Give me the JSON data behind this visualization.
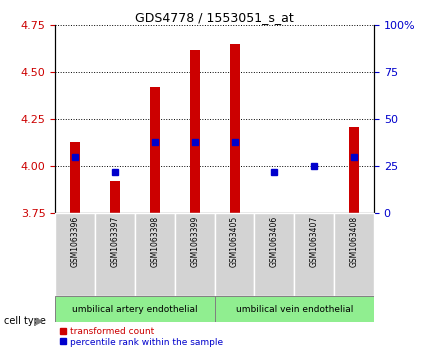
{
  "title": "GDS4778 / 1553051_s_at",
  "samples": [
    "GSM1063396",
    "GSM1063397",
    "GSM1063398",
    "GSM1063399",
    "GSM1063405",
    "GSM1063406",
    "GSM1063407",
    "GSM1063408"
  ],
  "transformed_counts": [
    4.13,
    3.92,
    4.42,
    4.62,
    4.65,
    3.75,
    3.75,
    4.21
  ],
  "percentile_ranks": [
    30,
    22,
    38,
    38,
    38,
    22,
    25,
    30
  ],
  "ylim_left": [
    3.75,
    4.75
  ],
  "ylim_right": [
    0,
    100
  ],
  "yticks_left": [
    3.75,
    4.0,
    4.25,
    4.5,
    4.75
  ],
  "yticks_right": [
    0,
    25,
    50,
    75,
    100
  ],
  "ytick_labels_right": [
    "0",
    "25",
    "50",
    "75",
    "100%"
  ],
  "bar_color": "#cc0000",
  "dot_color": "#0000cc",
  "cell_types": [
    {
      "label": "umbilical artery endothelial",
      "start": 0,
      "end": 4,
      "color": "#90ee90"
    },
    {
      "label": "umbilical vein endothelial",
      "start": 4,
      "end": 8,
      "color": "#90ee90"
    }
  ],
  "cell_type_label": "cell type",
  "legend_bar_label": "transformed count",
  "legend_dot_label": "percentile rank within the sample",
  "background_color": "#ffffff",
  "plot_bg": "#ffffff",
  "tick_color_left": "#cc0000",
  "tick_color_right": "#0000cc",
  "bar_bottom": 3.75,
  "bar_width": 0.25,
  "dot_size": 4
}
